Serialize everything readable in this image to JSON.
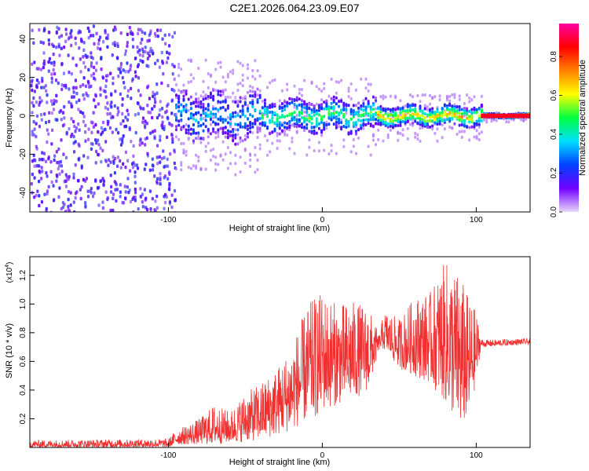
{
  "title": "C2E1.2026.064.23.09.E07",
  "chart_data": [
    {
      "type": "heatmap",
      "xlabel": "Height of straight line (km)",
      "ylabel": "Frequency (Hz)",
      "xlim": [
        -190,
        135
      ],
      "ylim": [
        -50,
        48
      ],
      "x_ticks": [
        -100,
        0,
        100
      ],
      "y_ticks": [
        -40,
        -20,
        0,
        20,
        40
      ],
      "colorbar": {
        "label": "Normalized spectral amplitude",
        "range": [
          0.0,
          0.97
        ],
        "ticks": [
          0.0,
          0.2,
          0.4,
          0.6,
          0.8
        ],
        "tick_labels": [
          "0.0",
          "0.2",
          "0.4",
          "0.6",
          "0.8"
        ],
        "colormap": [
          "#e8d8f8",
          "#7000ff",
          "#0040ff",
          "#00e0ff",
          "#00ff40",
          "#ffff00",
          "#ff8000",
          "#ff0000",
          "#ff00a0"
        ]
      },
      "regions": [
        {
          "x_range": [
            -190,
            -96
          ],
          "description": "broadband noise",
          "freq_spread": 48,
          "amplitude": 0.1
        },
        {
          "x_range": [
            -96,
            -40
          ],
          "freq_spread": 12,
          "amplitude": 0.35
        },
        {
          "x_range": [
            -40,
            35
          ],
          "freq_spread": 8,
          "amplitude": 0.5
        },
        {
          "x_range": [
            35,
            103
          ],
          "freq_spread": 5,
          "amplitude": 0.7
        },
        {
          "x_range": [
            103,
            135
          ],
          "freq_spread": 1,
          "amplitude": 0.9
        }
      ]
    },
    {
      "type": "line",
      "xlabel": "Height of straight line (km)",
      "ylabel": "SNR (10 * v/v)",
      "scale_label": "(x10",
      "scale_exp": "4",
      "scale_close": ")",
      "xlim": [
        -190,
        135
      ],
      "ylim": [
        0,
        1.33
      ],
      "x_ticks": [
        -100,
        0,
        100
      ],
      "y_ticks": [
        0.2,
        0.4,
        0.6,
        0.8,
        1.0,
        1.2
      ],
      "series": [
        {
          "name": "SNR",
          "color": "#f03030",
          "envelope_x": [
            -190,
            -100,
            -95,
            -80,
            -70,
            -60,
            -50,
            -40,
            -30,
            -20,
            -15,
            -10,
            -5,
            0,
            10,
            20,
            30,
            37,
            40,
            50,
            60,
            70,
            80,
            90,
            95,
            100,
            103,
            105,
            135
          ],
          "envelope_low": [
            0.0,
            0.0,
            0.02,
            0.02,
            0.02,
            0.03,
            0.04,
            0.05,
            0.08,
            0.12,
            0.15,
            0.18,
            0.2,
            0.25,
            0.3,
            0.33,
            0.4,
            0.68,
            0.68,
            0.55,
            0.5,
            0.45,
            0.3,
            0.12,
            0.2,
            0.45,
            0.7,
            0.7,
            0.72
          ],
          "envelope_high": [
            0.05,
            0.06,
            0.12,
            0.2,
            0.3,
            0.25,
            0.38,
            0.45,
            0.55,
            0.7,
            0.85,
            0.98,
            1.05,
            1.08,
            1.0,
            1.02,
            0.98,
            0.78,
            0.95,
            0.9,
            1.05,
            1.08,
            1.3,
            1.2,
            1.05,
            0.95,
            0.76,
            0.75,
            0.76
          ]
        }
      ]
    }
  ]
}
